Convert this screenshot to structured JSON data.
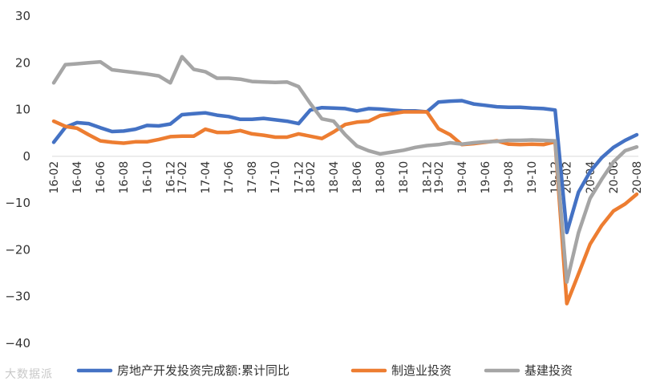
{
  "chart_data": {
    "type": "line",
    "title": "",
    "xlabel": "",
    "ylabel": "",
    "ylim": [
      -40,
      30
    ],
    "yticks": [
      30,
      20,
      10,
      0,
      -10,
      -20,
      -30,
      -40
    ],
    "grid": false,
    "legend_position": "bottom",
    "x": [
      "16-02",
      "16-03",
      "16-04",
      "16-05",
      "16-06",
      "16-07",
      "16-08",
      "16-09",
      "16-10",
      "16-11",
      "16-12",
      "17-02",
      "17-03",
      "17-04",
      "17-05",
      "17-06",
      "17-07",
      "17-08",
      "17-09",
      "17-10",
      "17-11",
      "17-12",
      "18-02",
      "18-03",
      "18-04",
      "18-05",
      "18-06",
      "18-07",
      "18-08",
      "18-09",
      "18-10",
      "18-11",
      "18-12",
      "19-02",
      "19-03",
      "19-04",
      "19-05",
      "19-06",
      "19-07",
      "19-08",
      "19-09",
      "19-10",
      "19-11",
      "19-12",
      "20-02",
      "20-03",
      "20-04",
      "20-05",
      "20-06",
      "20-07",
      "20-08"
    ],
    "xtick_labels": [
      "16-02",
      "16-04",
      "16-06",
      "16-08",
      "16-10",
      "16-12",
      "17-02",
      "17-04",
      "17-06",
      "17-08",
      "17-10",
      "17-12",
      "18-02",
      "18-04",
      "18-06",
      "18-08",
      "18-10",
      "18-12",
      "19-02",
      "19-04",
      "19-06",
      "19-08",
      "19-10",
      "19-12",
      "20-02",
      "20-04",
      "20-06",
      "20-08"
    ],
    "series": [
      {
        "name": "房地产开发投资完成额:累计同比",
        "color": "#4472C4",
        "values": [
          3.0,
          6.2,
          7.2,
          7.0,
          6.1,
          5.3,
          5.4,
          5.8,
          6.6,
          6.5,
          6.9,
          8.9,
          9.1,
          9.3,
          8.8,
          8.5,
          7.9,
          7.9,
          8.1,
          7.8,
          7.5,
          7.0,
          9.9,
          10.4,
          10.3,
          10.2,
          9.7,
          10.2,
          10.1,
          9.9,
          9.7,
          9.7,
          9.5,
          11.6,
          11.8,
          11.9,
          11.2,
          10.9,
          10.6,
          10.5,
          10.5,
          10.3,
          10.2,
          9.9,
          -16.3,
          -7.7,
          -3.3,
          -0.3,
          1.9,
          3.4,
          4.6
        ]
      },
      {
        "name": "制造业投资",
        "color": "#ED7D31",
        "values": [
          7.5,
          6.4,
          6.0,
          4.6,
          3.3,
          3.0,
          2.8,
          3.1,
          3.1,
          3.6,
          4.2,
          4.3,
          4.3,
          5.8,
          5.1,
          5.1,
          5.5,
          4.8,
          4.5,
          4.1,
          4.1,
          4.8,
          4.3,
          3.8,
          5.2,
          6.8,
          7.3,
          7.5,
          8.7,
          9.1,
          9.5,
          9.5,
          9.5,
          5.9,
          4.6,
          2.5,
          2.7,
          3.0,
          3.3,
          2.6,
          2.5,
          2.6,
          2.5,
          3.1,
          -31.5,
          -25.2,
          -18.8,
          -14.8,
          -11.7,
          -10.2,
          -8.1
        ]
      },
      {
        "name": "基建投资",
        "color": "#A5A5A5",
        "values": [
          15.7,
          19.6,
          19.8,
          20.0,
          20.2,
          18.5,
          18.2,
          17.9,
          17.6,
          17.2,
          15.7,
          21.3,
          18.6,
          18.1,
          16.7,
          16.7,
          16.5,
          16.0,
          15.9,
          15.8,
          15.9,
          14.9,
          11.3,
          8.0,
          7.5,
          4.6,
          2.2,
          1.2,
          0.5,
          0.9,
          1.3,
          1.9,
          2.3,
          2.5,
          2.9,
          2.6,
          2.9,
          3.1,
          3.2,
          3.4,
          3.4,
          3.5,
          3.4,
          3.3,
          -26.9,
          -16.4,
          -9.0,
          -4.9,
          -1.2,
          1.2,
          2.0
        ]
      }
    ]
  },
  "watermark": "大数据派"
}
